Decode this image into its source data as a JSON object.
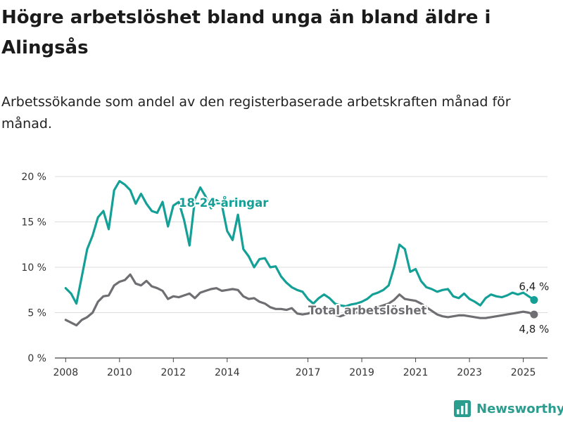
{
  "title": "Högre arbetslöshet bland unga än bland äldre i Alingsås",
  "subtitle": "Arbetssökande som andel av den registerbaserade arbetskraften månad för månad.",
  "brand": {
    "name": "Newsworthy",
    "icon": "bar-chart-logo-icon",
    "color": "#2a9d8f"
  },
  "chart_data": {
    "type": "line",
    "title": "Högre arbetslöshet bland unga än bland äldre i Alingsås",
    "subtitle": "Arbetssökande som andel av den registerbaserade arbetskraften månad för månad.",
    "xlabel": "",
    "ylabel": "",
    "xlim": [
      2007.6,
      2025.9
    ],
    "ylim": [
      0,
      20
    ],
    "yticks": [
      0,
      5,
      10,
      15,
      20
    ],
    "ytick_labels": [
      "0 %",
      "5 %",
      "10 %",
      "15 %",
      "20 %"
    ],
    "xticks": [
      2008,
      2010,
      2012,
      2014,
      2017,
      2019,
      2021,
      2023,
      2025
    ],
    "xtick_labels": [
      "2008",
      "2010",
      "2012",
      "2014",
      "2017",
      "2019",
      "2021",
      "2023",
      "2025"
    ],
    "grid": "horizontal",
    "legend": "none",
    "series": [
      {
        "name": "18-24-åringar",
        "color": "#14a096",
        "end_label": "6,4 %",
        "x": [
          2008.0,
          2008.2,
          2008.4,
          2008.6,
          2008.8,
          2009.0,
          2009.2,
          2009.4,
          2009.6,
          2009.8,
          2010.0,
          2010.2,
          2010.4,
          2010.6,
          2010.8,
          2011.0,
          2011.2,
          2011.4,
          2011.6,
          2011.8,
          2012.0,
          2012.2,
          2012.4,
          2012.6,
          2012.8,
          2013.0,
          2013.2,
          2013.4,
          2013.6,
          2013.8,
          2014.0,
          2014.2,
          2014.4,
          2014.6,
          2014.8,
          2015.0,
          2015.2,
          2015.4,
          2015.6,
          2015.8,
          2016.0,
          2016.2,
          2016.4,
          2016.6,
          2016.8,
          2017.0,
          2017.2,
          2017.4,
          2017.6,
          2017.8,
          2018.0,
          2018.2,
          2018.4,
          2018.6,
          2018.8,
          2019.0,
          2019.2,
          2019.4,
          2019.6,
          2019.8,
          2020.0,
          2020.2,
          2020.4,
          2020.6,
          2020.8,
          2021.0,
          2021.2,
          2021.4,
          2021.6,
          2021.8,
          2022.0,
          2022.2,
          2022.4,
          2022.6,
          2022.8,
          2023.0,
          2023.2,
          2023.4,
          2023.6,
          2023.8,
          2024.0,
          2024.2,
          2024.4,
          2024.6,
          2024.8,
          2025.0,
          2025.2,
          2025.4
        ],
        "values": [
          7.7,
          7.1,
          6.0,
          9.0,
          12.0,
          13.5,
          15.5,
          16.2,
          14.2,
          18.5,
          19.5,
          19.1,
          18.5,
          17.0,
          18.1,
          17.0,
          16.2,
          16.0,
          17.2,
          14.5,
          16.8,
          17.2,
          15.2,
          12.4,
          17.5,
          18.8,
          17.8,
          16.5,
          17.4,
          16.9,
          14.0,
          13.0,
          15.8,
          12.0,
          11.2,
          10.0,
          10.9,
          11.0,
          10.0,
          10.1,
          9.0,
          8.3,
          7.8,
          7.5,
          7.3,
          6.5,
          6.0,
          6.6,
          7.0,
          6.6,
          6.0,
          5.8,
          5.7,
          5.9,
          6.0,
          6.2,
          6.5,
          7.0,
          7.2,
          7.5,
          8.0,
          10.0,
          12.5,
          12.0,
          9.5,
          9.8,
          8.5,
          7.8,
          7.6,
          7.3,
          7.5,
          7.6,
          6.8,
          6.6,
          7.1,
          6.5,
          6.2,
          5.8,
          6.6,
          7.0,
          6.8,
          6.7,
          6.9,
          7.2,
          7.0,
          7.2,
          6.8,
          6.4
        ]
      },
      {
        "name": "Total arbetslöshet",
        "color": "#6f6e72",
        "end_label": "4,8 %",
        "x": [
          2008.0,
          2008.2,
          2008.4,
          2008.6,
          2008.8,
          2009.0,
          2009.2,
          2009.4,
          2009.6,
          2009.8,
          2010.0,
          2010.2,
          2010.4,
          2010.6,
          2010.8,
          2011.0,
          2011.2,
          2011.4,
          2011.6,
          2011.8,
          2012.0,
          2012.2,
          2012.4,
          2012.6,
          2012.8,
          2013.0,
          2013.2,
          2013.4,
          2013.6,
          2013.8,
          2014.0,
          2014.2,
          2014.4,
          2014.6,
          2014.8,
          2015.0,
          2015.2,
          2015.4,
          2015.6,
          2015.8,
          2016.0,
          2016.2,
          2016.4,
          2016.6,
          2016.8,
          2017.0,
          2017.2,
          2017.4,
          2017.6,
          2017.8,
          2018.0,
          2018.2,
          2018.4,
          2018.6,
          2018.8,
          2019.0,
          2019.2,
          2019.4,
          2019.6,
          2019.8,
          2020.0,
          2020.2,
          2020.4,
          2020.6,
          2020.8,
          2021.0,
          2021.2,
          2021.4,
          2021.6,
          2021.8,
          2022.0,
          2022.2,
          2022.4,
          2022.6,
          2022.8,
          2023.0,
          2023.2,
          2023.4,
          2023.6,
          2023.8,
          2024.0,
          2024.2,
          2024.4,
          2024.6,
          2024.8,
          2025.0,
          2025.2,
          2025.4
        ],
        "values": [
          4.2,
          3.9,
          3.6,
          4.2,
          4.5,
          5.0,
          6.2,
          6.8,
          6.9,
          8.0,
          8.4,
          8.6,
          9.2,
          8.2,
          8.0,
          8.5,
          7.9,
          7.7,
          7.4,
          6.5,
          6.8,
          6.7,
          6.9,
          7.1,
          6.6,
          7.2,
          7.4,
          7.6,
          7.7,
          7.4,
          7.5,
          7.6,
          7.5,
          6.8,
          6.5,
          6.6,
          6.2,
          6.0,
          5.6,
          5.4,
          5.4,
          5.3,
          5.5,
          4.9,
          4.8,
          4.9,
          5.1,
          5.2,
          5.0,
          5.0,
          4.8,
          4.6,
          4.8,
          4.9,
          5.0,
          5.1,
          5.2,
          5.4,
          5.6,
          5.8,
          6.0,
          6.4,
          7.0,
          6.5,
          6.4,
          6.3,
          6.0,
          5.6,
          5.2,
          4.8,
          4.6,
          4.5,
          4.6,
          4.7,
          4.7,
          4.6,
          4.5,
          4.4,
          4.4,
          4.5,
          4.6,
          4.7,
          4.8,
          4.9,
          5.0,
          5.1,
          5.0,
          4.8
        ]
      }
    ]
  }
}
